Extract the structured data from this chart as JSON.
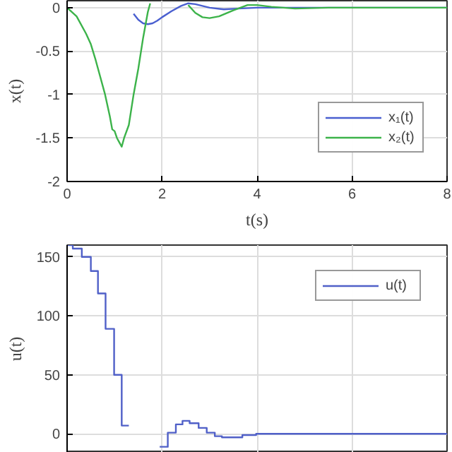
{
  "chart_data": [
    {
      "type": "line",
      "xlabel": "t(s)",
      "ylabel": "x(t)",
      "xlim": [
        0,
        8
      ],
      "ylim": [
        -2,
        0.08
      ],
      "xticks": [
        0,
        2,
        4,
        6,
        8
      ],
      "yticks": [
        -2,
        -1.5,
        -1,
        -0.5,
        0
      ],
      "grid": true,
      "legend": "right",
      "series": [
        {
          "name": "x₁(t)",
          "color": "#4a5fd0",
          "x": [
            1.4,
            1.5,
            1.6,
            1.7,
            1.8,
            1.9,
            2.0,
            2.2,
            2.4,
            2.55,
            2.7,
            3.0,
            3.3,
            3.6,
            4.0,
            4.5,
            5,
            6,
            8
          ],
          "values": [
            -0.07,
            -0.14,
            -0.18,
            -0.19,
            -0.18,
            -0.15,
            -0.11,
            -0.04,
            0.02,
            0.05,
            0.04,
            0.0,
            -0.02,
            -0.01,
            0.0,
            0.0,
            0.0,
            0.0,
            0.0
          ]
        },
        {
          "name": "x₂(t)",
          "color": "#3cb34a",
          "x": [
            0,
            0.2,
            0.4,
            0.5,
            0.6,
            0.7,
            0.8,
            0.9,
            0.95,
            1.0,
            1.05,
            1.1,
            1.15,
            1.2,
            1.3,
            1.4,
            1.5,
            1.6,
            1.7,
            1.75,
            1.78,
            2.45,
            2.55,
            2.7,
            2.85,
            3.0,
            3.2,
            3.5,
            3.8,
            4.0,
            4.3,
            4.8,
            5.5,
            8
          ],
          "values": [
            0,
            -0.1,
            -0.3,
            -0.42,
            -0.6,
            -0.8,
            -1.0,
            -1.25,
            -1.4,
            -1.42,
            -1.5,
            -1.55,
            -1.6,
            -1.5,
            -1.35,
            -1.0,
            -0.7,
            -0.35,
            -0.05,
            0.05,
            null,
            null,
            0.03,
            -0.06,
            -0.11,
            -0.12,
            -0.1,
            -0.03,
            0.03,
            0.03,
            0.01,
            -0.01,
            0.0,
            0.0
          ]
        }
      ]
    },
    {
      "type": "step",
      "ylabel": "u(t)",
      "xlim": [
        0,
        8
      ],
      "ylim": [
        -16,
        160
      ],
      "xticks": [
        0,
        2,
        4,
        6,
        8
      ],
      "yticks": [
        0,
        50,
        100,
        150
      ],
      "grid": true,
      "legend": "top right",
      "tick_labels": "y",
      "series": [
        {
          "name": "u(t)",
          "color": "#5060c8",
          "x": [
            0,
            0.12,
            0.31,
            0.5,
            0.65,
            0.81,
            0.99,
            1.15,
            1.3,
            1.95,
            2.12,
            2.29,
            2.43,
            2.58,
            2.77,
            2.94,
            3.11,
            3.26,
            3.69,
            3.98,
            8
          ],
          "values": [
            160,
            157,
            150,
            138,
            119,
            89,
            50,
            7,
            null,
            -11,
            1,
            8,
            11,
            9,
            5,
            1,
            -2,
            -3,
            -1,
            0,
            0
          ]
        }
      ]
    }
  ]
}
